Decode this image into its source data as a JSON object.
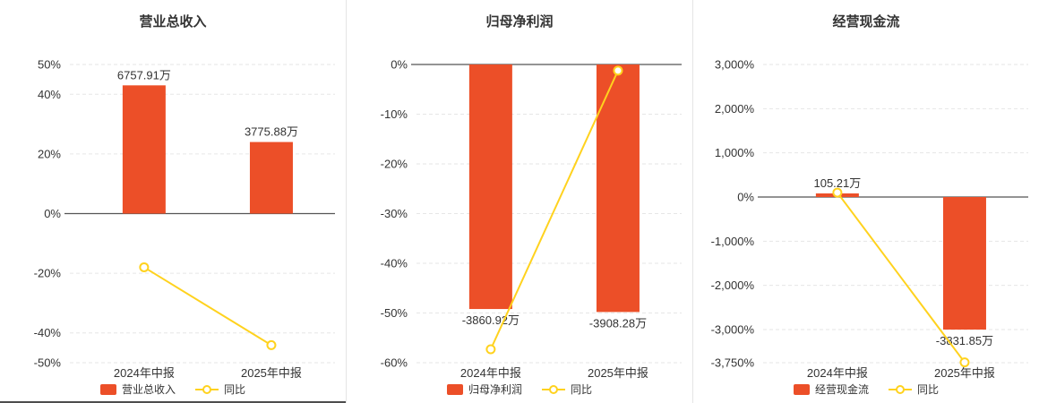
{
  "colors": {
    "bar": "#ec4f28",
    "line": "#ffd21e",
    "grid": "#e6e6e6",
    "axis": "#555555",
    "text": "#333333",
    "divider": "#e5e5e5"
  },
  "chart_data": [
    {
      "type": "bar+line",
      "title": "营业总收入",
      "legend_position": "bottom",
      "grid": "dashed-horizontal",
      "categories": [
        "2024年中报",
        "2025年中报"
      ],
      "ylim": [
        -50,
        50
      ],
      "yticks": [
        {
          "v": 50,
          "label": "50%"
        },
        {
          "v": 40,
          "label": "40%"
        },
        {
          "v": 20,
          "label": "20%"
        },
        {
          "v": 0,
          "label": "0%"
        },
        {
          "v": -20,
          "label": "-20%"
        },
        {
          "v": -40,
          "label": "-40%"
        },
        {
          "v": -50,
          "label": "-50%"
        }
      ],
      "bar_series": {
        "name": "营业总收入",
        "labels": [
          "6757.91万",
          "3775.88万"
        ],
        "plot_values": [
          43,
          24
        ]
      },
      "line_series": {
        "name": "同比",
        "values": [
          -18,
          -44.12
        ]
      }
    },
    {
      "type": "bar+line",
      "title": "归母净利润",
      "legend_position": "bottom",
      "grid": "dashed-horizontal",
      "categories": [
        "2024年中报",
        "2025年中报"
      ],
      "ylim": [
        -60,
        0
      ],
      "yticks": [
        {
          "v": 0,
          "label": "0%"
        },
        {
          "v": -10,
          "label": "-10%"
        },
        {
          "v": -20,
          "label": "-20%"
        },
        {
          "v": -30,
          "label": "-30%"
        },
        {
          "v": -40,
          "label": "-40%"
        },
        {
          "v": -50,
          "label": "-50%"
        },
        {
          "v": -60,
          "label": "-60%"
        }
      ],
      "bar_series": {
        "name": "归母净利润",
        "labels": [
          "-3860.92万",
          "-3908.28万"
        ],
        "plot_values": [
          -49.2,
          -49.8
        ]
      },
      "line_series": {
        "name": "同比",
        "values": [
          -57.3,
          -1.23
        ]
      }
    },
    {
      "type": "bar+line",
      "title": "经营现金流",
      "legend_position": "bottom",
      "grid": "dashed-horizontal",
      "categories": [
        "2024年中报",
        "2025年中报"
      ],
      "ylim": [
        -3750,
        3000
      ],
      "yticks": [
        {
          "v": 3000,
          "label": "3,000%"
        },
        {
          "v": 2000,
          "label": "2,000%"
        },
        {
          "v": 1000,
          "label": "1,000%"
        },
        {
          "v": 0,
          "label": "0%"
        },
        {
          "v": -1000,
          "label": "-1,000%"
        },
        {
          "v": -2000,
          "label": "-2,000%"
        },
        {
          "v": -3000,
          "label": "-3,000%"
        },
        {
          "v": -3750,
          "label": "-3,750%"
        }
      ],
      "bar_series": {
        "name": "经营现金流",
        "labels": [
          "105.21万",
          "-3831.85万"
        ],
        "plot_values": [
          82,
          -3000
        ]
      },
      "line_series": {
        "name": "同比",
        "values": [
          100,
          -3741.94
        ]
      }
    }
  ]
}
